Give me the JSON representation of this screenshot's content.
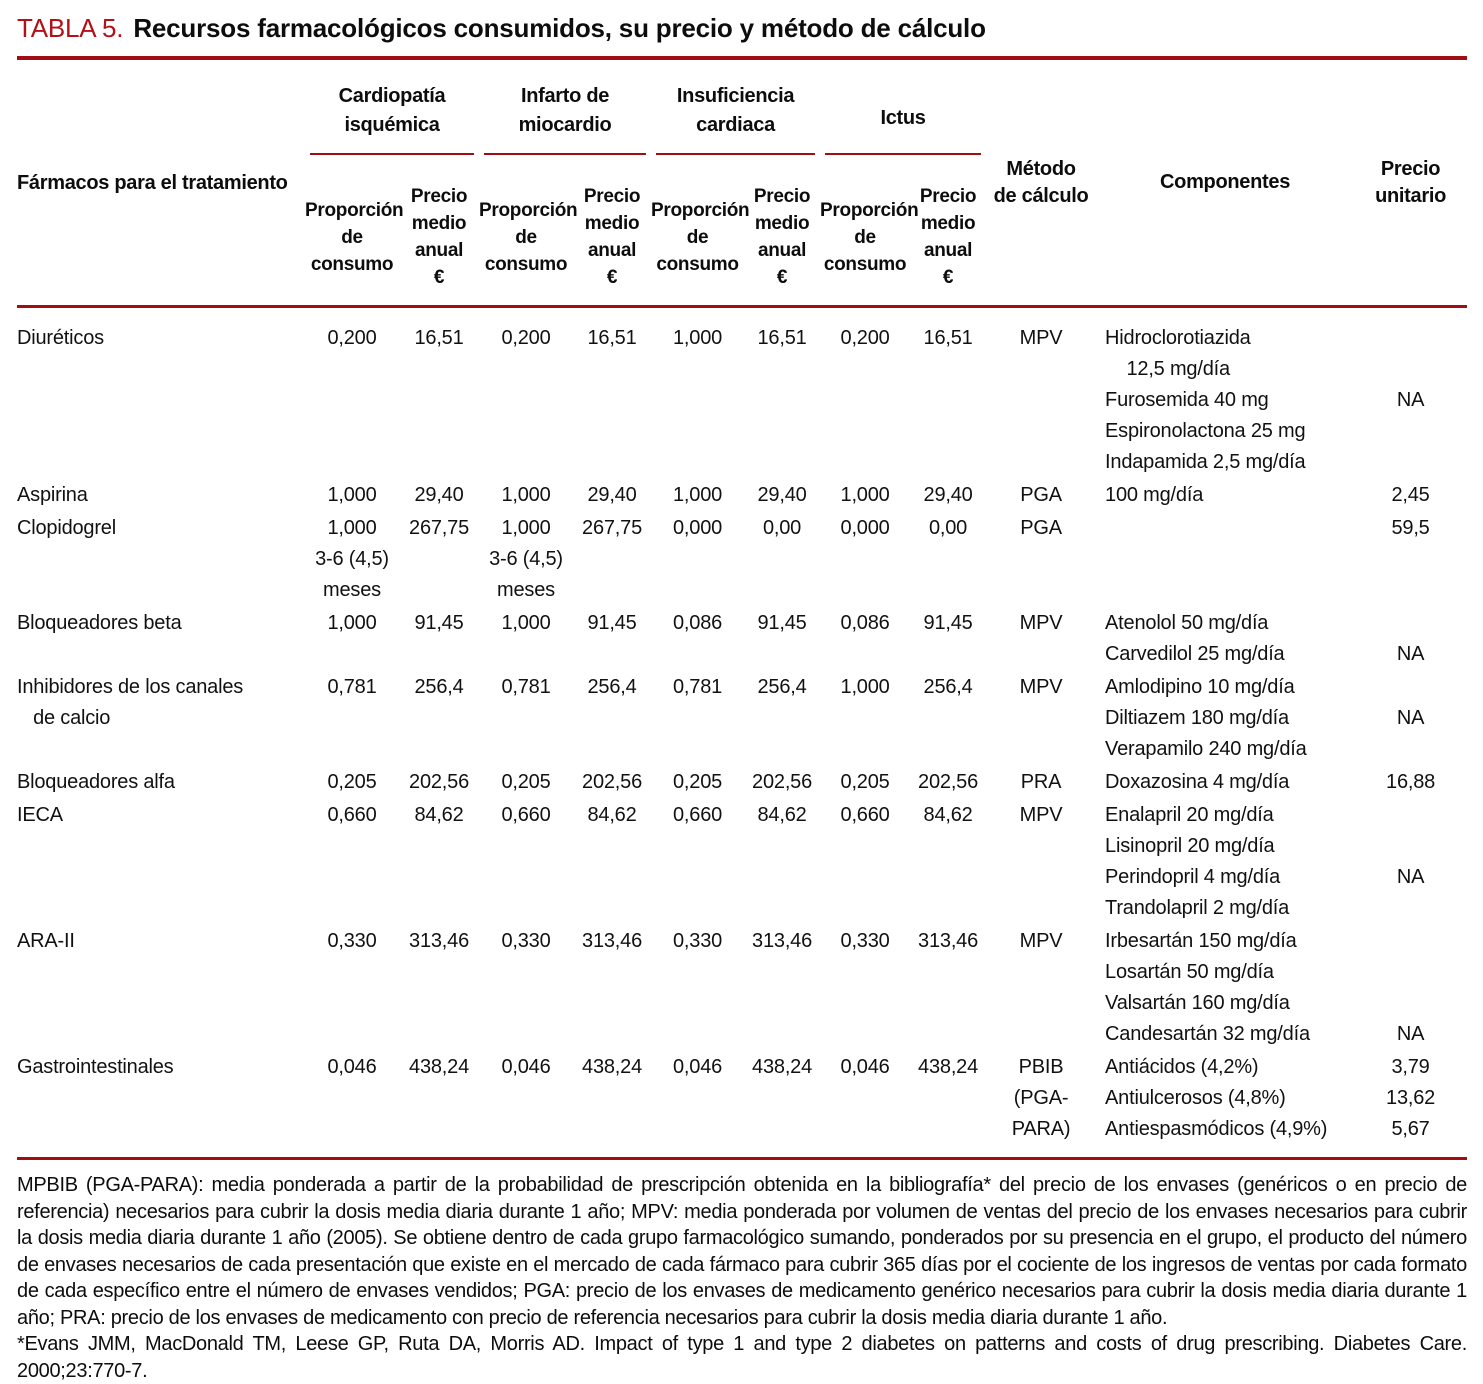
{
  "title": {
    "label": "TABLA 5.",
    "text": "Recursos farmacológicos consumidos, su precio y método de cálculo"
  },
  "colors": {
    "accent_red": "#b1121a",
    "rule_red": "#a00d12",
    "text": "#111111",
    "background": "#ffffff"
  },
  "table": {
    "row_header": "Fármacos para el tratamiento",
    "groups": [
      {
        "label": [
          "Cardiopatía",
          "isquémica"
        ]
      },
      {
        "label": [
          "Infarto de",
          "miocardio"
        ]
      },
      {
        "label": [
          "Insuficiencia",
          "cardiaca"
        ]
      },
      {
        "label": [
          "Ictus"
        ]
      }
    ],
    "sub_headers": {
      "proportion": [
        "Proporción",
        "de",
        "consumo"
      ],
      "price": [
        "Precio",
        "medio",
        "anual",
        "€"
      ]
    },
    "other_headers": {
      "method": [
        "Método",
        "de cálculo"
      ],
      "components": "Componentes",
      "unit_price": [
        "Precio",
        "unitario"
      ]
    },
    "rows": [
      {
        "cells": [
          "Diuréticos",
          "0,200",
          "16,51",
          "0,200",
          "16,51",
          "1,000",
          "16,51",
          "0,200",
          "16,51",
          "MPV",
          [
            "Hidroclorotiazida",
            "    12,5 mg/día",
            "Furosemida 40 mg",
            "Espironolactona 25 mg",
            "Indapamida 2,5 mg/día"
          ],
          [
            "",
            "",
            "NA",
            "",
            ""
          ]
        ]
      },
      {
        "cells": [
          "Aspirina",
          "1,000",
          "29,40",
          "1,000",
          "29,40",
          "1,000",
          "29,40",
          "1,000",
          "29,40",
          "PGA",
          "100 mg/día",
          "2,45"
        ]
      },
      {
        "cells": [
          "Clopidogrel",
          [
            "1,000",
            "3-6 (4,5)",
            "meses"
          ],
          "267,75",
          [
            "1,000",
            "3-6 (4,5)",
            "meses"
          ],
          "267,75",
          "0,000",
          "0,00",
          "0,000",
          "0,00",
          "PGA",
          "",
          "59,5"
        ]
      },
      {
        "cells": [
          "Bloqueadores beta",
          "1,000",
          "91,45",
          "1,000",
          "91,45",
          "0,086",
          "91,45",
          "0,086",
          "91,45",
          "MPV",
          [
            "Atenolol 50 mg/día",
            "Carvedilol 25 mg/día"
          ],
          [
            "",
            "NA"
          ]
        ]
      },
      {
        "cells": [
          [
            "Inhibidores de los canales",
            "   de calcio"
          ],
          "0,781",
          "256,4",
          "0,781",
          "256,4",
          "0,781",
          "256,4",
          "1,000",
          "256,4",
          "MPV",
          [
            "Amlodipino 10 mg/día",
            "Diltiazem 180 mg/día",
            "Verapamilo 240 mg/día"
          ],
          [
            "",
            "NA",
            ""
          ]
        ]
      },
      {
        "cells": [
          "Bloqueadores alfa",
          "0,205",
          "202,56",
          "0,205",
          "202,56",
          "0,205",
          "202,56",
          "0,205",
          "202,56",
          "PRA",
          "Doxazosina 4 mg/día",
          "16,88"
        ]
      },
      {
        "cells": [
          "IECA",
          "0,660",
          "84,62",
          "0,660",
          "84,62",
          "0,660",
          "84,62",
          "0,660",
          "84,62",
          "MPV",
          [
            "Enalapril 20 mg/día",
            "Lisinopril 20 mg/día",
            "Perindopril 4 mg/día",
            "Trandolapril 2 mg/día"
          ],
          [
            "",
            "",
            "NA",
            ""
          ]
        ]
      },
      {
        "cells": [
          "ARA-II",
          "0,330",
          "313,46",
          "0,330",
          "313,46",
          "0,330",
          "313,46",
          "0,330",
          "313,46",
          "MPV",
          [
            "Irbesartán 150 mg/día",
            "Losartán 50 mg/día",
            "Valsartán 160 mg/día",
            "Candesartán 32 mg/día"
          ],
          [
            "",
            "",
            "",
            "NA"
          ]
        ]
      },
      {
        "cells": [
          "Gastrointestinales",
          "0,046",
          "438,24",
          "0,046",
          "438,24",
          "0,046",
          "438,24",
          "0,046",
          "438,24",
          [
            "PBIB",
            "(PGA-PARA)"
          ],
          [
            "Antiácidos (4,2%)",
            "Antiulcerosos (4,8%)",
            "Antiespasmódicos (4,9%)"
          ],
          [
            "3,79",
            "13,62",
            "5,67"
          ]
        ]
      }
    ]
  },
  "footnote": {
    "definitions": "MPBIB (PGA-PARA): media ponderada a partir de la probabilidad de prescripción obtenida en la bibliografía* del precio de los envases (genéricos o en precio de referencia) necesarios para cubrir la dosis media diaria durante 1 año; MPV: media ponderada por volumen de ventas del precio de los envases necesarios para cubrir la dosis media diaria durante 1 año (2005). Se obtiene dentro de cada grupo farmacológico sumando, ponderados por su presencia en el grupo, el producto del número de envases necesarios de cada presentación que existe en el mercado de cada fármaco para cubrir 365 días por el cociente de los ingresos de ventas por cada formato de cada específico entre el número de envases vendidos; PGA: precio de los envases de medicamento genérico necesarios para cubrir la dosis media diaria durante 1 año; PRA: precio de los envases de medicamento con precio de referencia necesarios para cubrir la dosis media diaria durante 1 año.",
    "reference": "*Evans JMM, MacDonald TM, Leese GP, Ruta DA, Morris AD. Impact of type 1 and type 2 diabetes on patterns and costs of drug prescribing. Diabetes Care. 2000;23:770-7."
  }
}
